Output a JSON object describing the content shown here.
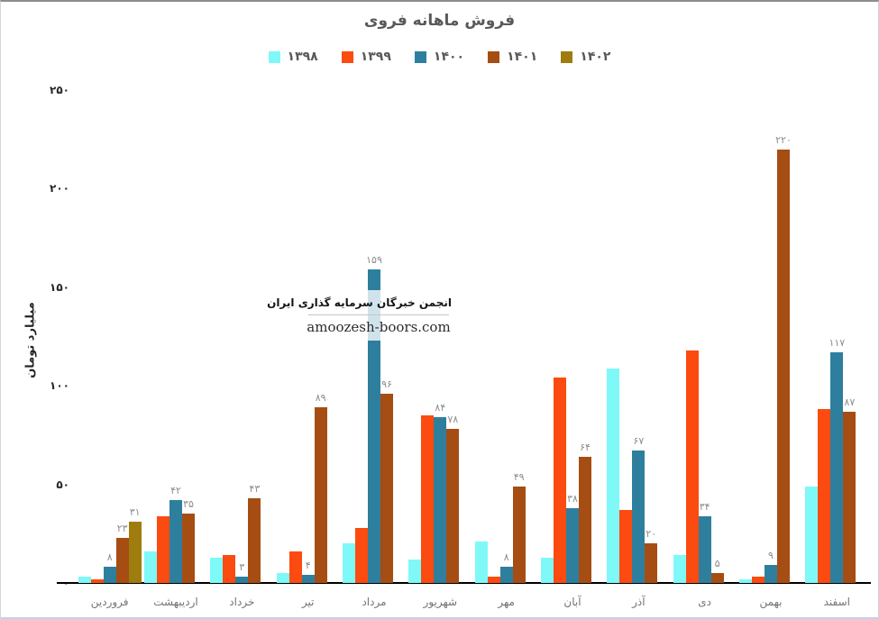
{
  "title": "فروش ماهانه فروی",
  "watermark": {
    "line1": "انجمن خبرگان سرمایه گذاری ایران",
    "line2": "amoozesh-boors.com"
  },
  "y_axis": {
    "label": "میلیارد تومان",
    "tick_labels": [
      "۰",
      "۵۰",
      "۱۰۰",
      "۱۵۰",
      "۲۰۰",
      "۲۵۰"
    ]
  },
  "chart_data": {
    "type": "bar",
    "title": "فروش ماهانه فروی",
    "ylabel": "میلیارد تومان",
    "ylim": [
      0,
      250
    ],
    "yticks": [
      0,
      50,
      100,
      150,
      200,
      250
    ],
    "grid": false,
    "legend_position": "top",
    "categories": [
      "فروردین",
      "اردیبهشت",
      "خرداد",
      "تیر",
      "مرداد",
      "شهریور",
      "مهر",
      "آبان",
      "آذر",
      "دی",
      "بهمن",
      "اسفند"
    ],
    "series": [
      {
        "name": "۱۳۹۸",
        "color": "#7ff8f8",
        "values": [
          3,
          16,
          13,
          5,
          20,
          12,
          21,
          13,
          109,
          14,
          2,
          49
        ],
        "labels": null
      },
      {
        "name": "۱۳۹۹",
        "color": "#fb4b10",
        "values": [
          2,
          34,
          14,
          16,
          28,
          85,
          3,
          104,
          37,
          118,
          3,
          88
        ],
        "labels": null
      },
      {
        "name": "۱۴۰۰",
        "color": "#2e7f9e",
        "values": [
          8,
          42,
          3,
          4,
          159,
          84,
          8,
          38,
          67,
          34,
          9,
          117
        ],
        "labels": [
          "۸",
          "۴۲",
          "۳",
          "۴",
          "۱۵۹",
          "۸۴",
          "۸",
          "۳۸",
          "۶۷",
          "۳۴",
          "۹",
          "۱۱۷"
        ]
      },
      {
        "name": "۱۴۰۱",
        "color": "#a54d13",
        "values": [
          23,
          35,
          43,
          89,
          96,
          78,
          49,
          64,
          20,
          5,
          220,
          87
        ],
        "labels": [
          "۲۳",
          "۳۵",
          "۴۳",
          "۸۹",
          "۹۶",
          "۷۸",
          "۴۹",
          "۶۴",
          "۲۰",
          "۵",
          "۲۲۰",
          "۸۷"
        ]
      },
      {
        "name": "۱۴۰۲",
        "color": "#9e7c0d",
        "values": [
          31,
          null,
          null,
          null,
          null,
          null,
          null,
          null,
          null,
          null,
          null,
          null
        ],
        "labels": [
          "۳۱",
          null,
          null,
          null,
          null,
          null,
          null,
          null,
          null,
          null,
          null,
          null
        ]
      }
    ]
  }
}
